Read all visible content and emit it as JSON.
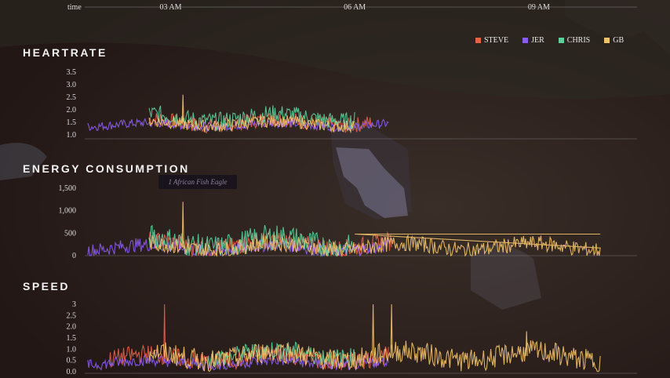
{
  "legend": [
    {
      "name": "STEVE",
      "color": "#e8604a"
    },
    {
      "name": "JER",
      "color": "#8a5cf0"
    },
    {
      "name": "CHRIS",
      "color": "#5ccf9a"
    },
    {
      "name": "GB",
      "color": "#f2c26a"
    }
  ],
  "time_axis": {
    "label": "time",
    "ticks": [
      "03 AM",
      "06 AM",
      "09 AM"
    ]
  },
  "tooltip": "1 African Fish Eagle",
  "chart_data": [
    {
      "type": "line",
      "title": "HEARTRATE",
      "ylim": [
        1.0,
        3.5
      ],
      "yticks": [
        "3.5",
        "3.0",
        "2.5",
        "2.0",
        "1.5",
        "1.0"
      ],
      "xrange_hours": [
        1.6,
        10.6
      ],
      "series": [
        {
          "name": "STEVE",
          "start": 2.65,
          "end": 6.3,
          "base": 1.5,
          "amp": 0.45
        },
        {
          "name": "JER",
          "start": 1.65,
          "end": 6.55,
          "base": 1.4,
          "amp": 0.25
        },
        {
          "name": "CHRIS",
          "start": 2.65,
          "end": 6.0,
          "base": 1.7,
          "amp": 0.5
        },
        {
          "name": "GB",
          "start": 2.65,
          "end": 6.0,
          "base": 1.45,
          "amp": 0.35
        }
      ],
      "peaks": [
        {
          "series": "GB",
          "x": 3.2,
          "y": 2.6
        }
      ]
    },
    {
      "type": "line",
      "title": "ENERGY CONSUMPTION",
      "ylim": [
        0,
        1500
      ],
      "yticks": [
        "1,500",
        "1,000",
        "500",
        "0"
      ],
      "xrange_hours": [
        1.6,
        10.6
      ],
      "series": [
        {
          "name": "STEVE",
          "start": 2.65,
          "end": 6.6,
          "base": 250,
          "amp": 300
        },
        {
          "name": "JER",
          "start": 1.65,
          "end": 6.55,
          "base": 180,
          "amp": 220
        },
        {
          "name": "CHRIS",
          "start": 2.65,
          "end": 6.0,
          "base": 300,
          "amp": 400
        },
        {
          "name": "GB",
          "start": 2.65,
          "end": 10.0,
          "base": 200,
          "amp": 250
        }
      ],
      "peaks": [
        {
          "series": "GB",
          "x": 3.2,
          "y": 1200
        }
      ],
      "flat_segments": [
        {
          "series": "GB",
          "x_start": 6.0,
          "x_end": 10.0,
          "y": 480
        }
      ]
    },
    {
      "type": "line",
      "title": "SPEED",
      "ylim": [
        0,
        3.0
      ],
      "yticks": [
        "3",
        "2.5",
        "2.0",
        "1.5",
        "1.0",
        "0.5",
        "0.0"
      ],
      "xrange_hours": [
        1.6,
        10.6
      ],
      "series": [
        {
          "name": "STEVE",
          "start": 2.0,
          "end": 6.55,
          "base": 0.6,
          "amp": 0.6
        },
        {
          "name": "JER",
          "start": 1.65,
          "end": 6.55,
          "base": 0.4,
          "amp": 0.35
        },
        {
          "name": "CHRIS",
          "start": 3.6,
          "end": 6.0,
          "base": 0.8,
          "amp": 0.6
        },
        {
          "name": "GB",
          "start": 2.65,
          "end": 10.0,
          "base": 0.7,
          "amp": 0.7
        }
      ],
      "peaks": [
        {
          "series": "STEVE",
          "x": 2.9,
          "y": 3.0
        },
        {
          "series": "GB",
          "x": 6.3,
          "y": 3.0
        },
        {
          "series": "GB",
          "x": 6.6,
          "y": 3.0
        },
        {
          "series": "GB",
          "x": 8.8,
          "y": 1.8
        }
      ]
    }
  ]
}
